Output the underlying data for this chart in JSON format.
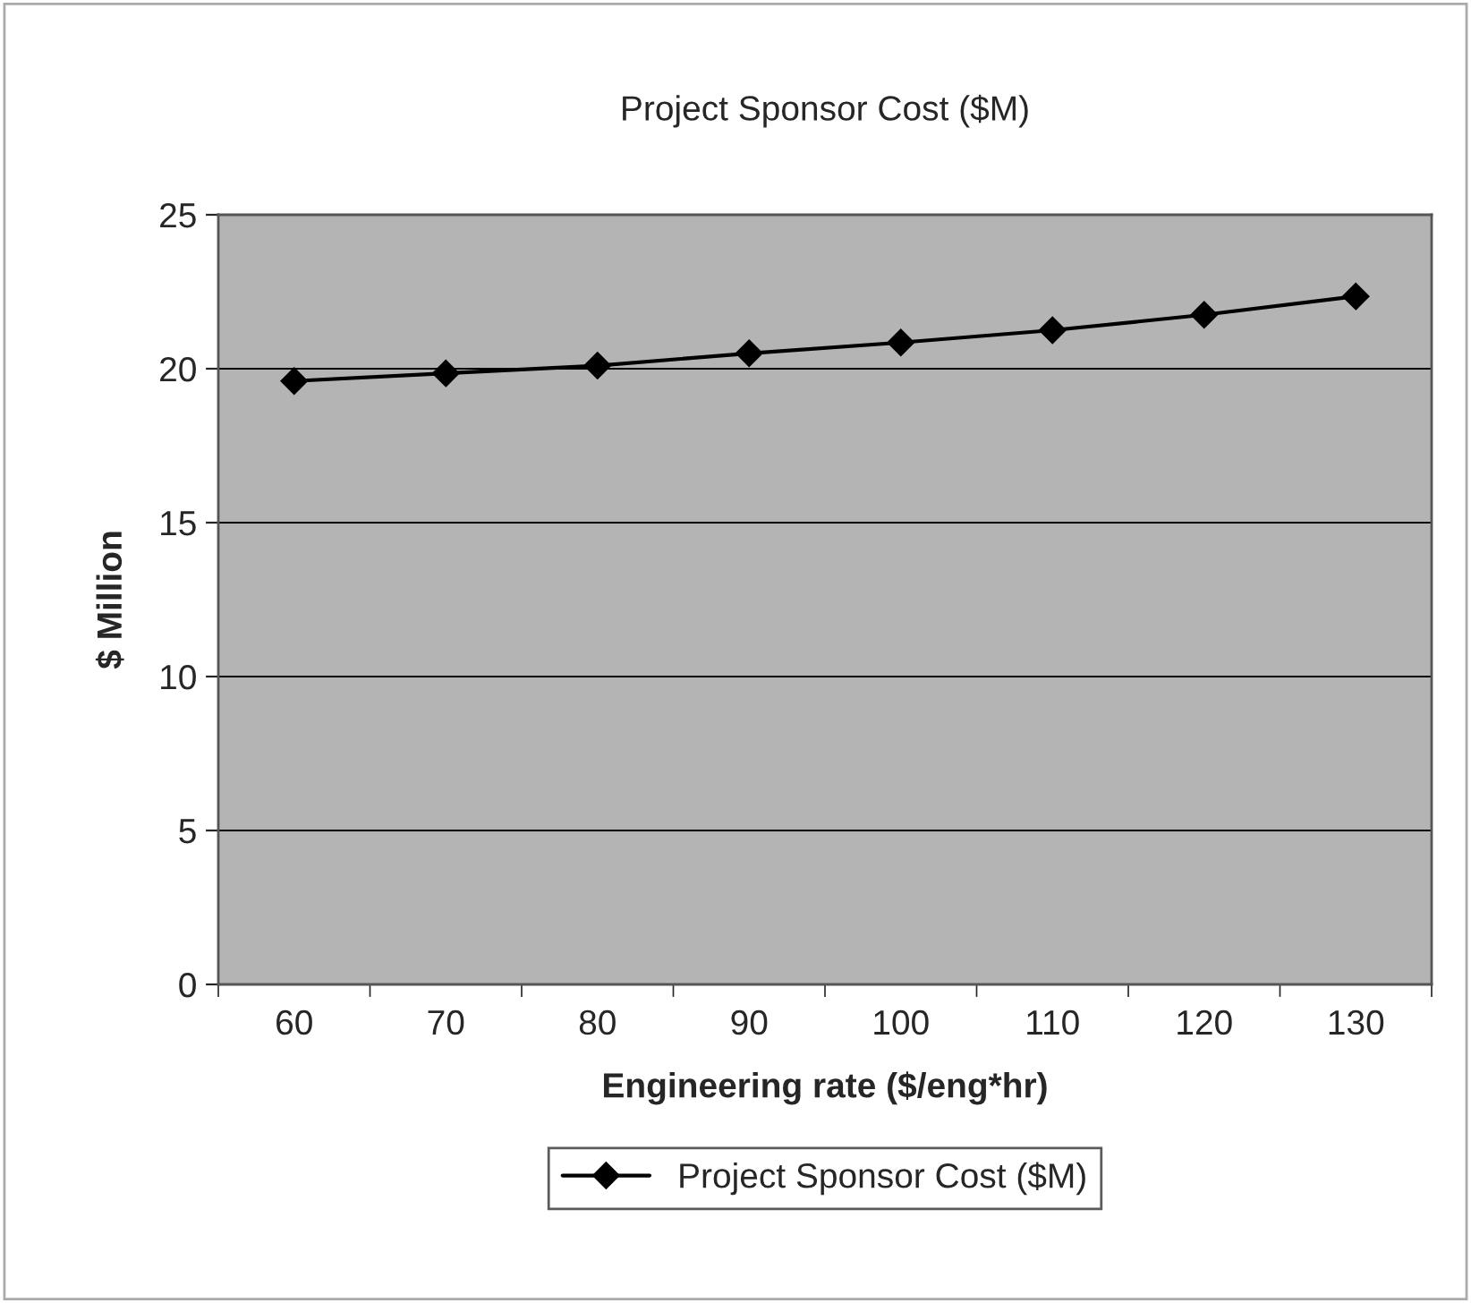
{
  "chart_data": {
    "type": "line",
    "title": "Project Sponsor Cost ($M)",
    "xlabel": "Engineering rate ($/eng*hr)",
    "ylabel": "$ Million",
    "categories": [
      "60",
      "70",
      "80",
      "90",
      "100",
      "110",
      "120",
      "130"
    ],
    "series": [
      {
        "name": "Project Sponsor Cost ($M)",
        "color": "#000000",
        "values": [
          19.6,
          19.85,
          20.1,
          20.5,
          20.85,
          21.25,
          21.75,
          22.35
        ]
      }
    ],
    "ylim": [
      0,
      25
    ],
    "yticks": [
      0,
      5,
      10,
      15,
      20,
      25
    ],
    "grid": "y",
    "legend": "bottom",
    "marker": "diamond",
    "line_style": "solid"
  }
}
